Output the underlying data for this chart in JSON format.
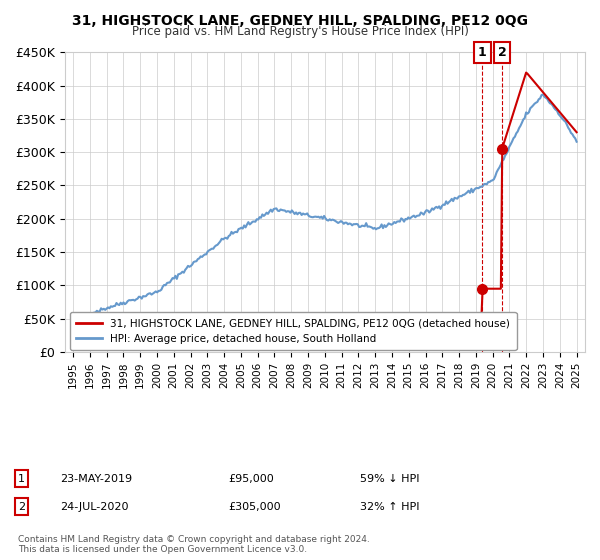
{
  "title": "31, HIGHSTOCK LANE, GEDNEY HILL, SPALDING, PE12 0QG",
  "subtitle": "Price paid vs. HM Land Registry's House Price Index (HPI)",
  "legend_line1": "31, HIGHSTOCK LANE, GEDNEY HILL, SPALDING, PE12 0QG (detached house)",
  "legend_line2": "HPI: Average price, detached house, South Holland",
  "footer": "Contains HM Land Registry data © Crown copyright and database right 2024.\nThis data is licensed under the Open Government Licence v3.0.",
  "sale1_label": "1",
  "sale1_date": "23-MAY-2019",
  "sale1_price": "£95,000",
  "sale1_hpi": "59% ↓ HPI",
  "sale2_label": "2",
  "sale2_date": "24-JUL-2020",
  "sale2_price": "£305,000",
  "sale2_hpi": "32% ↑ HPI",
  "sale1_x": 2019.39,
  "sale1_y": 95000,
  "sale2_x": 2020.56,
  "sale2_y": 305000,
  "ylim": [
    0,
    450000
  ],
  "xlim": [
    1994.5,
    2025.5
  ],
  "yticks": [
    0,
    50000,
    100000,
    150000,
    200000,
    250000,
    300000,
    350000,
    400000,
    450000
  ],
  "ytick_labels": [
    "£0",
    "£50K",
    "£100K",
    "£150K",
    "£200K",
    "£250K",
    "£300K",
    "£350K",
    "£400K",
    "£450K"
  ],
  "xticks": [
    1995,
    1996,
    1997,
    1998,
    1999,
    2000,
    2001,
    2002,
    2003,
    2004,
    2005,
    2006,
    2007,
    2008,
    2009,
    2010,
    2011,
    2012,
    2013,
    2014,
    2015,
    2016,
    2017,
    2018,
    2019,
    2020,
    2021,
    2022,
    2023,
    2024,
    2025
  ],
  "red_color": "#cc0000",
  "blue_color": "#6699cc",
  "marker_border_color": "#cc0000",
  "sale_marker_color": "#cc0000",
  "vline_color": "#cc0000",
  "label_box_color": "#cc0000"
}
